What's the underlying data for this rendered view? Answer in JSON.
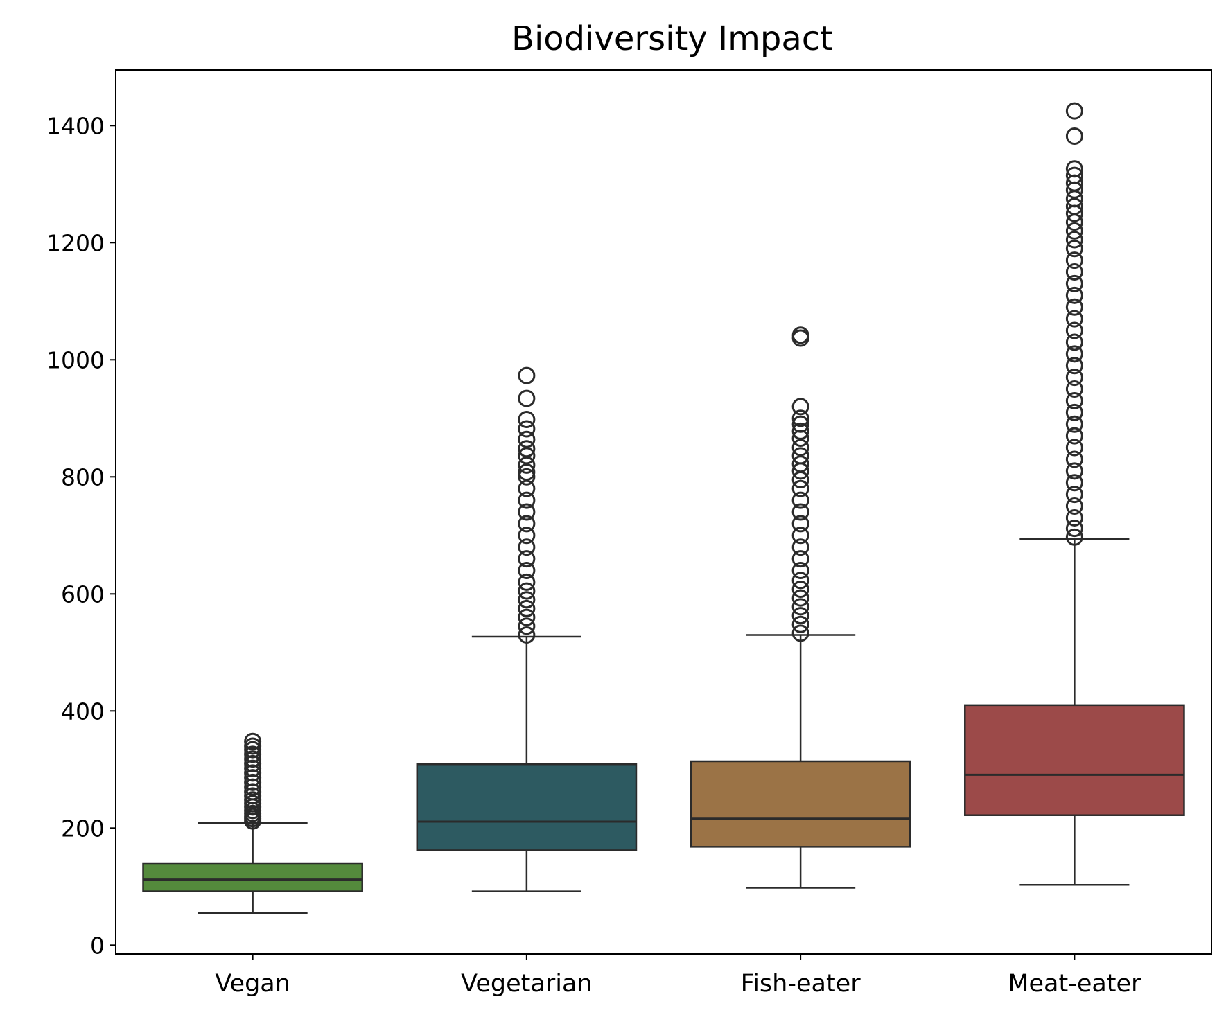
{
  "chart_data": {
    "type": "box",
    "title": "Biodiversity Impact",
    "xlabel": "",
    "ylabel": "",
    "ylim": [
      -15,
      1495
    ],
    "yticks": [
      0,
      200,
      400,
      600,
      800,
      1000,
      1200,
      1400
    ],
    "ytick_labels": [
      "0",
      "200",
      "400",
      "600",
      "800",
      "1000",
      "1200",
      "1400"
    ],
    "grid": false,
    "legend": "none",
    "categories": [
      "Vegan",
      "Vegetarian",
      "Fish-eater",
      "Meat-eater"
    ],
    "boxes": [
      {
        "category": "Vegan",
        "color": "#548a3c",
        "whisker_low": 55,
        "q1": 92,
        "median": 112,
        "q3": 140,
        "whisker_high": 209,
        "outliers": [
          212,
          216,
          220,
          225,
          230,
          236,
          242,
          248,
          255,
          262,
          270,
          278,
          286,
          294,
          302,
          310,
          318,
          326,
          334,
          340,
          348
        ]
      },
      {
        "category": "Vegetarian",
        "color": "#2d5a61",
        "whisker_low": 92,
        "q1": 162,
        "median": 211,
        "q3": 309,
        "whisker_high": 527,
        "outliers": [
          530,
          545,
          560,
          575,
          590,
          605,
          620,
          640,
          660,
          680,
          700,
          720,
          740,
          760,
          780,
          800,
          808,
          820,
          836,
          848,
          864,
          882,
          898,
          934,
          973
        ]
      },
      {
        "category": "Fish-eater",
        "color": "#9b7346",
        "whisker_low": 98,
        "q1": 168,
        "median": 216,
        "q3": 314,
        "whisker_high": 530,
        "outliers": [
          533,
          548,
          563,
          578,
          593,
          608,
          623,
          640,
          660,
          680,
          700,
          720,
          740,
          760,
          780,
          795,
          810,
          822,
          836,
          850,
          866,
          878,
          890,
          900,
          920,
          1037,
          1042
        ]
      },
      {
        "category": "Meat-eater",
        "color": "#9c4a49",
        "whisker_low": 103,
        "q1": 222,
        "median": 291,
        "q3": 410,
        "whisker_high": 694,
        "outliers": [
          697,
          712,
          730,
          750,
          770,
          790,
          810,
          830,
          850,
          870,
          890,
          910,
          930,
          950,
          970,
          990,
          1010,
          1030,
          1050,
          1070,
          1090,
          1110,
          1130,
          1150,
          1170,
          1190,
          1205,
          1220,
          1235,
          1250,
          1262,
          1275,
          1290,
          1302,
          1315,
          1326,
          1382,
          1425
        ]
      }
    ]
  }
}
